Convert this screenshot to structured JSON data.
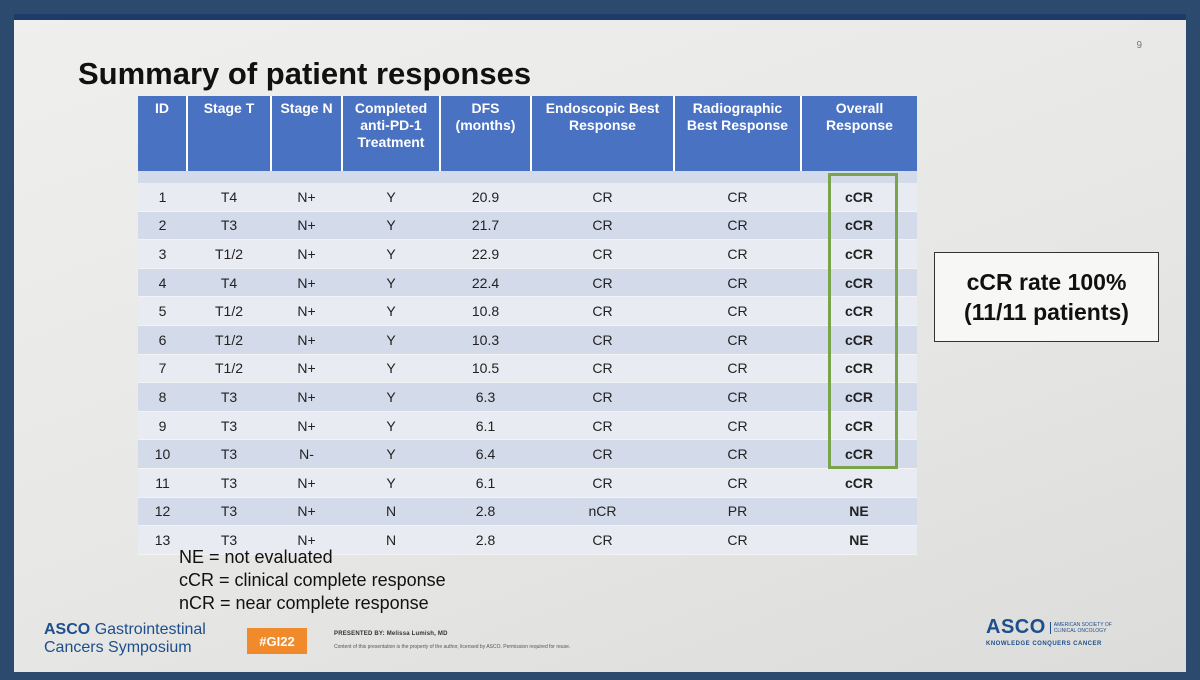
{
  "slide_number": "9",
  "title": "Summary of patient responses",
  "table": {
    "headers": [
      [
        "ID"
      ],
      [
        "Stage T"
      ],
      [
        "Stage N"
      ],
      [
        "Completed",
        "anti-PD-1",
        "Treatment"
      ],
      [
        "DFS",
        "(months)"
      ],
      [
        "Endoscopic Best",
        "Response"
      ],
      [
        "Radiographic",
        "Best Response"
      ],
      [
        "Overall",
        "Response"
      ]
    ],
    "rows": [
      [
        "1",
        "T4",
        "N+",
        "Y",
        "20.9",
        "CR",
        "CR",
        "cCR"
      ],
      [
        "2",
        "T3",
        "N+",
        "Y",
        "21.7",
        "CR",
        "CR",
        "cCR"
      ],
      [
        "3",
        "T1/2",
        "N+",
        "Y",
        "22.9",
        "CR",
        "CR",
        "cCR"
      ],
      [
        "4",
        "T4",
        "N+",
        "Y",
        "22.4",
        "CR",
        "CR",
        "cCR"
      ],
      [
        "5",
        "T1/2",
        "N+",
        "Y",
        "10.8",
        "CR",
        "CR",
        "cCR"
      ],
      [
        "6",
        "T1/2",
        "N+",
        "Y",
        "10.3",
        "CR",
        "CR",
        "cCR"
      ],
      [
        "7",
        "T1/2",
        "N+",
        "Y",
        "10.5",
        "CR",
        "CR",
        "cCR"
      ],
      [
        "8",
        "T3",
        "N+",
        "Y",
        "6.3",
        "CR",
        "CR",
        "cCR"
      ],
      [
        "9",
        "T3",
        "N+",
        "Y",
        "6.1",
        "CR",
        "CR",
        "cCR"
      ],
      [
        "10",
        "T3",
        "N-",
        "Y",
        "6.4",
        "CR",
        "CR",
        "cCR"
      ],
      [
        "11",
        "T3",
        "N+",
        "Y",
        "6.1",
        "CR",
        "CR",
        "cCR"
      ],
      [
        "12",
        "T3",
        "N+",
        "N",
        "2.8",
        "nCR",
        "PR",
        "NE"
      ],
      [
        "13",
        "T3",
        "N+",
        "N",
        "2.8",
        "CR",
        "CR",
        "NE"
      ]
    ]
  },
  "callout": {
    "line1": "cCR rate 100%",
    "line2": "(11/11 patients)"
  },
  "legend": [
    "NE = not evaluated",
    "cCR = clinical complete response",
    "nCR = near complete response"
  ],
  "footer": {
    "symposium_line1_brand": "ASCO",
    "symposium_line1_rest": "Gastrointestinal",
    "symposium_line2": "Cancers Symposium",
    "hashtag": "#GI22",
    "presented_by": "PRESENTED BY: Melissa Lumish, MD",
    "content_note": "Content of this presentation is the property of the author, licensed by ASCO. Permission required for reuse.",
    "asco_logo": "ASCO",
    "asco_society": "AMERICAN SOCIETY OF CLINICAL ONCOLOGY",
    "asco_tagline": "KNOWLEDGE CONQUERS CANCER"
  },
  "colors": {
    "header_blue": "#4a72c2",
    "row_light": "#e8ebf1",
    "row_dark": "#d3dbea",
    "highlight_green": "#7aa44a",
    "hashtag_orange": "#f08a2a",
    "asco_blue": "#1d4f8c"
  }
}
